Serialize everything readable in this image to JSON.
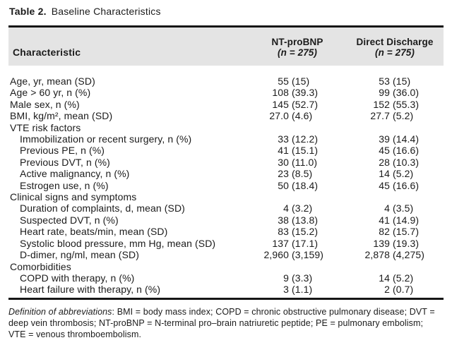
{
  "title": {
    "bold": "Table 2.",
    "rest": "Baseline Characteristics"
  },
  "table": {
    "header": {
      "characteristic": "Characteristic",
      "columns": [
        {
          "name": "NT-proBNP",
          "n": "(n = 275)"
        },
        {
          "name": "Direct Discharge",
          "n": "(n = 275)"
        }
      ]
    },
    "rows": [
      {
        "label": "Age, yr, mean (SD)",
        "indent": 0,
        "c1": {
          "num": "55",
          "paren": "(15)"
        },
        "c2": {
          "num": "53",
          "paren": "(15)"
        }
      },
      {
        "label": "Age > 60 yr, n (%)",
        "indent": 0,
        "c1": {
          "num": "108",
          "paren": "(39.3)"
        },
        "c2": {
          "num": "99",
          "paren": "(36.0)"
        }
      },
      {
        "label": "Male sex, n (%)",
        "indent": 0,
        "c1": {
          "num": "145",
          "paren": "(52.7)"
        },
        "c2": {
          "num": "152",
          "paren": "(55.3)"
        }
      },
      {
        "label": "BMI, kg/m², mean (SD)",
        "indent": 0,
        "c1": {
          "num": "27.0",
          "paren": "(4.6)"
        },
        "c2": {
          "num": "27.7",
          "paren": "(5.2)"
        }
      },
      {
        "label": "VTE risk factors",
        "indent": 0,
        "section": true
      },
      {
        "label": "Immobilization or recent surgery, n (%)",
        "indent": 1,
        "c1": {
          "num": "33",
          "paren": "(12.2)"
        },
        "c2": {
          "num": "39",
          "paren": "(14.4)"
        }
      },
      {
        "label": "Previous PE, n (%)",
        "indent": 1,
        "c1": {
          "num": "41",
          "paren": "(15.1)"
        },
        "c2": {
          "num": "45",
          "paren": "(16.6)"
        }
      },
      {
        "label": "Previous DVT, n (%)",
        "indent": 1,
        "c1": {
          "num": "30",
          "paren": "(11.0)"
        },
        "c2": {
          "num": "28",
          "paren": "(10.3)"
        }
      },
      {
        "label": "Active malignancy, n (%)",
        "indent": 1,
        "c1": {
          "num": "23",
          "paren": "(8.5)"
        },
        "c2": {
          "num": "14",
          "paren": "(5.2)"
        }
      },
      {
        "label": "Estrogen use, n (%)",
        "indent": 1,
        "c1": {
          "num": "50",
          "paren": "(18.4)"
        },
        "c2": {
          "num": "45",
          "paren": "(16.6)"
        }
      },
      {
        "label": "Clinical signs and symptoms",
        "indent": 0,
        "section": true
      },
      {
        "label": "Duration of complaints, d, mean (SD)",
        "indent": 1,
        "c1": {
          "num": "4",
          "paren": "(3.2)"
        },
        "c2": {
          "num": "4",
          "paren": "(3.5)"
        }
      },
      {
        "label": "Suspected DVT, n (%)",
        "indent": 1,
        "c1": {
          "num": "38",
          "paren": "(13.8)"
        },
        "c2": {
          "num": "41",
          "paren": "(14.9)"
        }
      },
      {
        "label": "Heart rate, beats/min, mean (SD)",
        "indent": 1,
        "c1": {
          "num": "83",
          "paren": "(15.2)"
        },
        "c2": {
          "num": "82",
          "paren": "(15.7)"
        }
      },
      {
        "label": "Systolic blood pressure, mm Hg, mean (SD)",
        "indent": 1,
        "c1": {
          "num": "137",
          "paren": "(17.1)"
        },
        "c2": {
          "num": "139",
          "paren": "(19.3)"
        }
      },
      {
        "label": "D-dimer, ng/ml, mean (SD)",
        "indent": 1,
        "c1": {
          "num": "2,960",
          "paren": "(3,159)"
        },
        "c2": {
          "num": "2,878",
          "paren": "(4,275)"
        }
      },
      {
        "label": "Comorbidities",
        "indent": 0,
        "section": true
      },
      {
        "label": "COPD with therapy, n (%)",
        "indent": 1,
        "c1": {
          "num": "9",
          "paren": "(3.3)"
        },
        "c2": {
          "num": "14",
          "paren": "(5.2)"
        }
      },
      {
        "label": "Heart failure with therapy, n (%)",
        "indent": 1,
        "c1": {
          "num": "3",
          "paren": "(1.1)"
        },
        "c2": {
          "num": "2",
          "paren": "(0.7)"
        }
      }
    ]
  },
  "footnote": {
    "italic_lead": "Definition of abbreviations",
    "rest": ": BMI = body mass index; COPD = chronic obstructive pulmonary disease; DVT = deep vein thrombosis; NT-proBNP = N-terminal pro–brain natriuretic peptide; PE = pulmonary embolism; VTE = venous thromboembolism."
  }
}
